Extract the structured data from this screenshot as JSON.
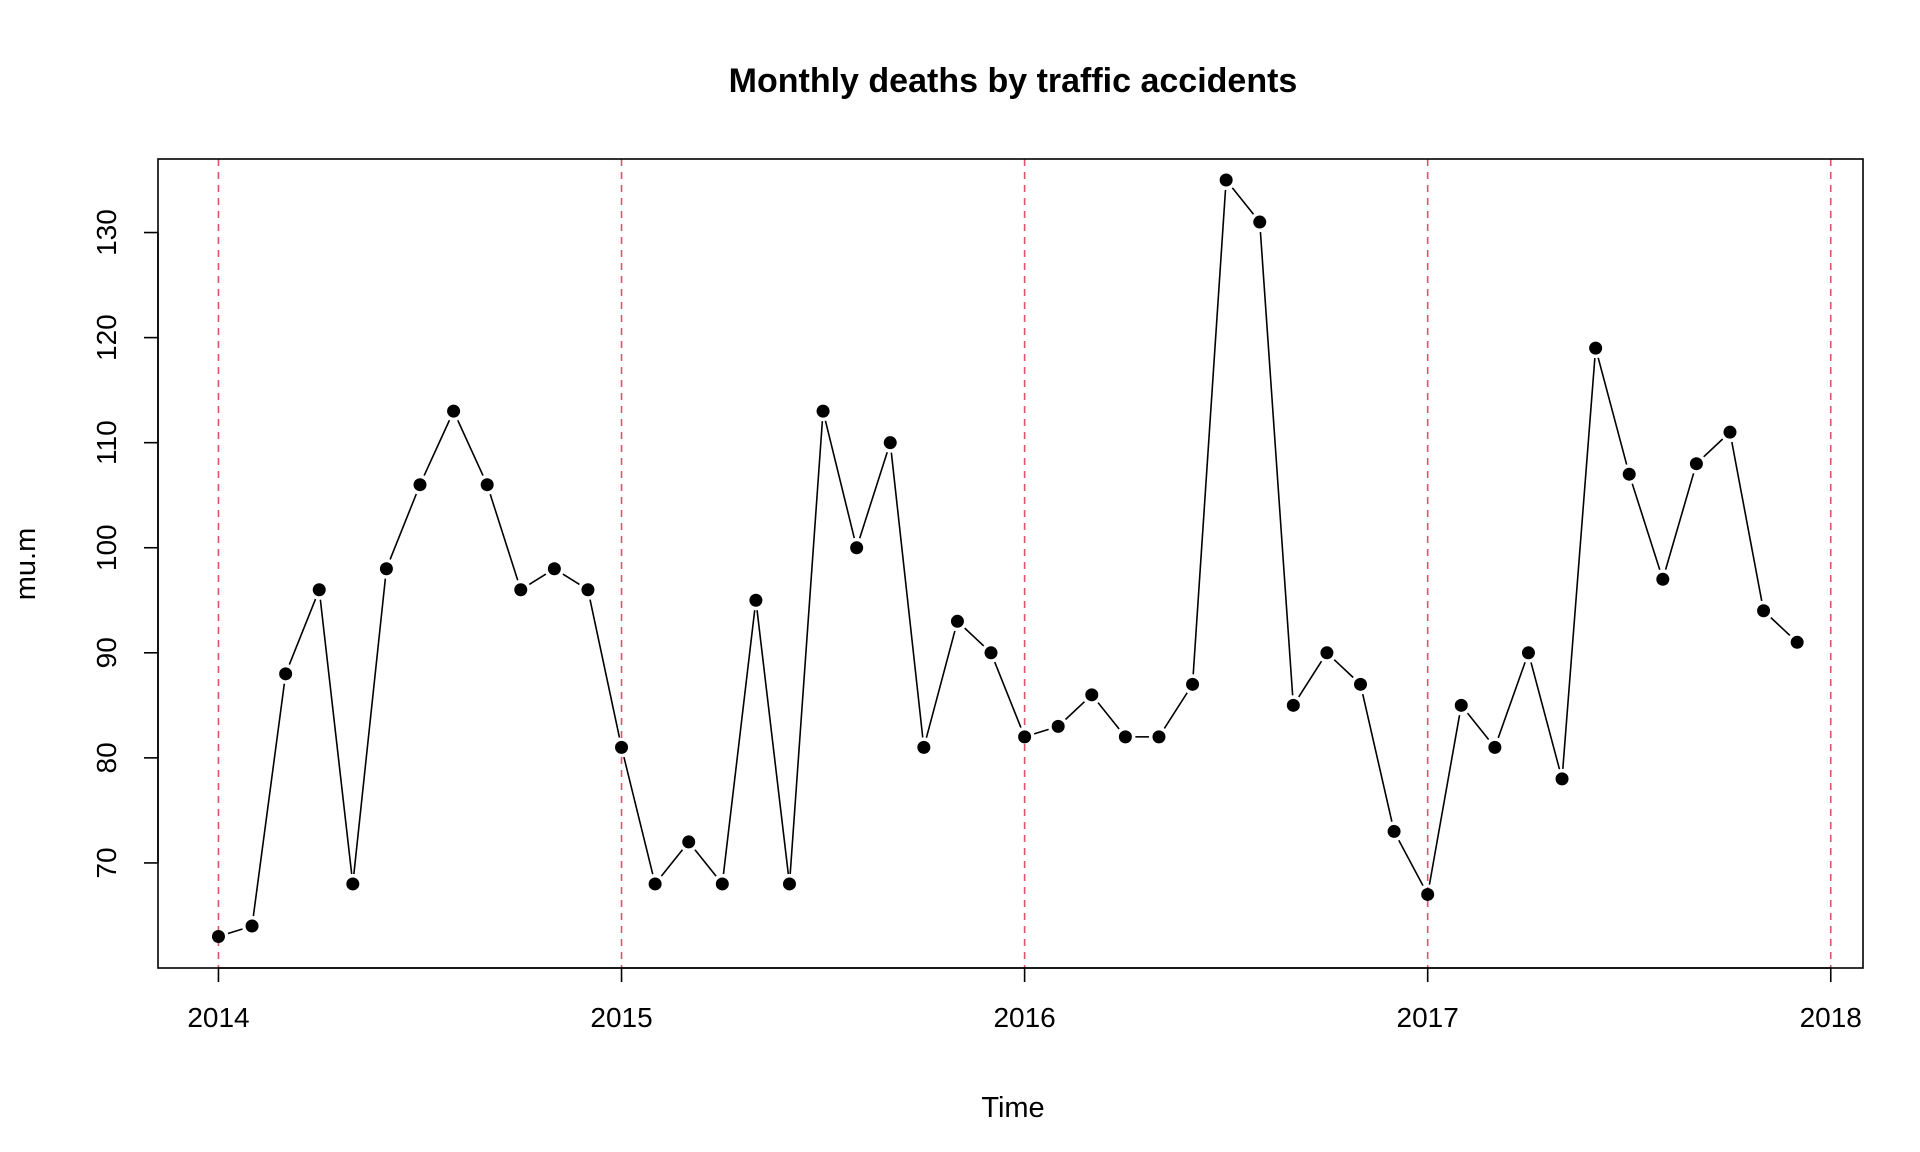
{
  "chart_data": {
    "type": "line",
    "title": "Monthly deaths by traffic accidents",
    "xlabel": "Time",
    "ylabel": "mu.m",
    "xlim": [
      2013.85,
      2018.08
    ],
    "ylim": [
      60,
      137
    ],
    "x_ticks": [
      2014,
      2015,
      2016,
      2017,
      2018
    ],
    "y_ticks": [
      70,
      80,
      90,
      100,
      110,
      120,
      130
    ],
    "vlines": [
      2014,
      2015,
      2016,
      2017,
      2018
    ],
    "grid": false,
    "series": [
      {
        "start_year": 2014,
        "frequency": 12,
        "values": [
          63,
          64,
          88,
          96,
          68,
          98,
          106,
          113,
          106,
          96,
          98,
          96,
          81,
          68,
          72,
          68,
          95,
          68,
          113,
          100,
          110,
          81,
          93,
          90,
          82,
          83,
          86,
          82,
          82,
          87,
          135,
          131,
          85,
          90,
          87,
          73,
          67,
          85,
          81,
          90,
          78,
          119,
          107,
          97,
          108,
          111,
          94,
          91
        ]
      }
    ],
    "colors": {
      "line": "#000000",
      "points": "#000000",
      "vlines": "#DF536B",
      "frame": "#000000"
    }
  }
}
